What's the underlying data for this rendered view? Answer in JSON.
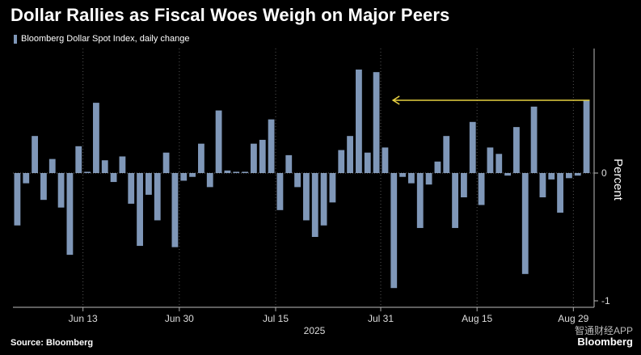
{
  "title": "Dollar Rallies as Fiscal Woes Weigh on Major Peers",
  "legend": {
    "label": "Bloomberg Dollar Spot Index, daily change",
    "color": "#7f97b8"
  },
  "source": "Source: Bloomberg",
  "brand": "Bloomberg",
  "watermark": "智通财经APP",
  "colors": {
    "bar": "#7f97b8",
    "annotation": "#e6cf41",
    "grid": "#555"
  },
  "chart_data": {
    "type": "bar",
    "title": "Dollar Rallies as Fiscal Woes Weigh on Major Peers",
    "xlabel": "",
    "ylabel": "Percent",
    "year_label": "2025",
    "ylim": [
      -1.05,
      0.98
    ],
    "yticks": [
      -1,
      0
    ],
    "x_tick_labels": [
      "Jun 13",
      "Jun 30",
      "Jul 15",
      "Jul 31",
      "Aug 15",
      "Aug 29"
    ],
    "series": [
      {
        "name": "Bloomberg Dollar Spot Index, daily change",
        "values": [
          -0.41,
          -0.08,
          0.29,
          -0.21,
          0.11,
          -0.27,
          -0.64,
          0.21,
          0.01,
          0.55,
          0.1,
          -0.07,
          0.13,
          -0.24,
          -0.57,
          -0.17,
          -0.37,
          0.16,
          -0.58,
          -0.06,
          -0.03,
          0.23,
          -0.11,
          0.49,
          0.02,
          0.01,
          0.01,
          0.23,
          0.26,
          0.42,
          -0.29,
          0.14,
          -0.11,
          -0.37,
          -0.5,
          -0.41,
          -0.23,
          0.18,
          0.29,
          0.81,
          0.16,
          0.79,
          0.2,
          -0.9,
          -0.03,
          -0.08,
          -0.43,
          -0.09,
          0.09,
          0.29,
          -0.43,
          -0.19,
          0.4,
          -0.25,
          0.2,
          0.15,
          -0.02,
          0.36,
          -0.79,
          0.52,
          -0.19,
          -0.05,
          -0.31,
          -0.04,
          -0.02,
          0.57
        ]
      }
    ],
    "annotation": {
      "type": "horizontal-arrow",
      "from_bar_index": 65,
      "to_bar_index": 42,
      "value": 0.57
    }
  }
}
